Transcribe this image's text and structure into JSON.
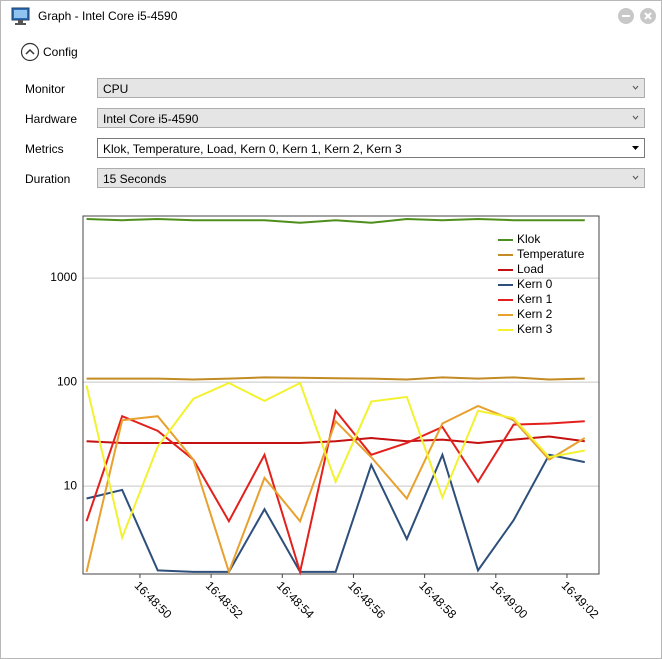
{
  "window": {
    "title": "Graph - Intel Core i5-4590"
  },
  "config": {
    "label": "Config",
    "fields": [
      {
        "label": "Monitor",
        "value": "CPU"
      },
      {
        "label": "Hardware",
        "value": "Intel Core i5-4590"
      },
      {
        "label": "Metrics",
        "value": "Klok, Temperature, Load, Kern 0, Kern 1, Kern 2, Kern 3"
      },
      {
        "label": "Duration",
        "value": "15 Seconds"
      }
    ]
  },
  "chart_data": {
    "type": "line",
    "log_scale": true,
    "grid": true,
    "legend": "top-right",
    "x": [
      60528.5,
      60529.5,
      60530.5,
      60531.5,
      60532.5,
      60533.5,
      60534.5,
      60535.5,
      60536.5,
      60537.5,
      60538.5,
      60539.5,
      60540.5,
      60541.5,
      60542.5
    ],
    "xlim": [
      60528.4,
      60542.9
    ],
    "xticks": [
      {
        "value": 60530,
        "label": "16:48:50"
      },
      {
        "value": 60532,
        "label": "16:48:52"
      },
      {
        "value": 60534,
        "label": "16:48:54"
      },
      {
        "value": 60536,
        "label": "16:48:56"
      },
      {
        "value": 60538,
        "label": "16:48:58"
      },
      {
        "value": 60540,
        "label": "16:49:00"
      },
      {
        "value": 60542,
        "label": "16:49:02"
      }
    ],
    "ylim": [
      1.43,
      3950
    ],
    "yticks": [
      10,
      100,
      1000
    ],
    "series": [
      {
        "name": "Klok",
        "color": "#4e8f1c",
        "values": [
          3700,
          3600,
          3700,
          3600,
          3600,
          3600,
          3400,
          3600,
          3400,
          3700,
          3600,
          3700,
          3600,
          3600,
          3600
        ]
      },
      {
        "name": "Temperature",
        "color": "#c38b24",
        "values": [
          108,
          108,
          108,
          106,
          108,
          111,
          110,
          109,
          108,
          106,
          111,
          108,
          111,
          106,
          108
        ]
      },
      {
        "name": "Load",
        "color": "#c41010",
        "values": [
          27,
          26,
          26,
          26,
          26,
          26,
          26,
          27,
          29,
          27,
          28,
          26,
          28,
          30,
          27
        ]
      },
      {
        "name": "Kern 0",
        "color": "#2e4f7c",
        "values": [
          7.6,
          9.2,
          1.55,
          1.5,
          1.5,
          6,
          1.5,
          1.5,
          16,
          3.1,
          20,
          1.55,
          4.7,
          20,
          17
        ]
      },
      {
        "name": "Kern 1",
        "color": "#e3201c",
        "values": [
          4.6,
          47,
          34,
          18,
          4.6,
          20,
          1.5,
          53,
          20,
          26,
          37,
          11,
          39,
          40,
          42
        ]
      },
      {
        "name": "Kern 2",
        "color": "#e8a02e",
        "values": [
          1.5,
          43,
          47,
          18,
          1.5,
          12,
          4.6,
          42,
          19,
          7.6,
          40,
          59,
          43,
          18,
          29
        ]
      },
      {
        "name": "Kern 3",
        "color": "#f2f230",
        "values": [
          93,
          3.2,
          24,
          69,
          98,
          66,
          98,
          11,
          65,
          72,
          7.8,
          53,
          45,
          19,
          22
        ]
      }
    ]
  }
}
